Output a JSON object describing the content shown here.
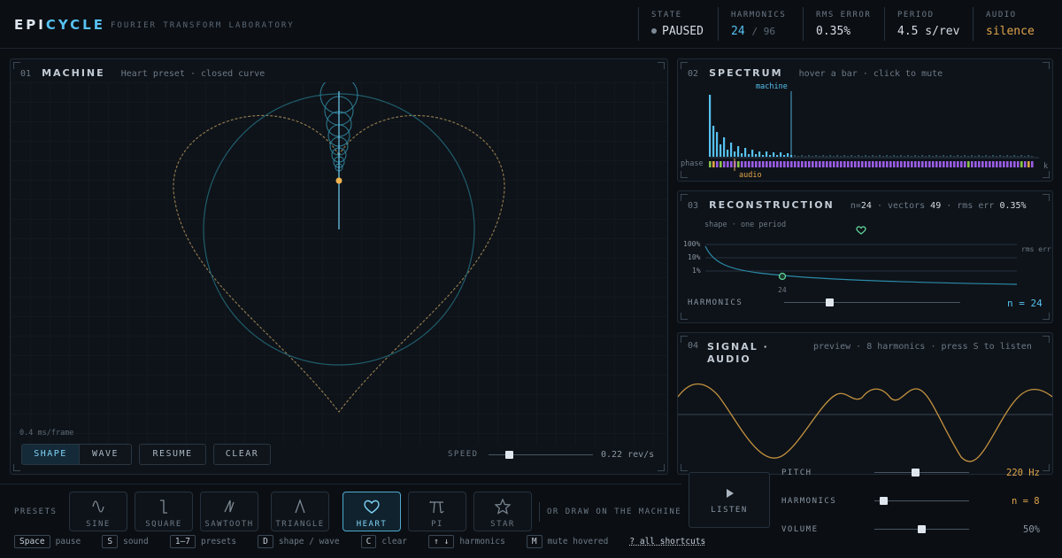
{
  "header": {
    "logo_part1": "EPI",
    "logo_part2": "CYCLE",
    "subtitle": "FOURIER TRANSFORM LABORATORY",
    "stats": {
      "state": {
        "label": "STATE",
        "value": "PAUSED"
      },
      "harmonics": {
        "label": "HARMONICS",
        "value": "24",
        "suffix": "/ 96"
      },
      "rms": {
        "label": "RMS ERROR",
        "value": "0.35%"
      },
      "period": {
        "label": "PERIOD",
        "value": "4.5 s/rev"
      },
      "audio": {
        "label": "AUDIO",
        "value": "silence"
      }
    }
  },
  "machine": {
    "num": "01",
    "title": "MACHINE",
    "subtitle": "Heart preset · closed curve",
    "frame_time": "0.4 ms/frame",
    "mode_shape": "SHAPE",
    "mode_wave": "WAVE",
    "resume": "RESUME",
    "clear": "CLEAR",
    "speed_label": "SPEED",
    "speed_value": "0.22 rev/s",
    "speed_fraction": 0.2
  },
  "spectrum": {
    "num": "02",
    "title": "SPECTRUM",
    "subtitle": "hover a bar · click to mute",
    "machine_label": "machine",
    "phase_label": "phase",
    "audio_label": "audio",
    "scale_label": "k"
  },
  "reconstruction": {
    "num": "03",
    "title": "RECONSTRUCTION",
    "n_prefix": "n=",
    "n_value": "24",
    "vectors_prefix": "· vectors",
    "vectors_value": "49",
    "rms_prefix": "· rms err",
    "rms_value": "0.35%",
    "shape_caption": "shape · one period",
    "error_axis_ticks": [
      "100%",
      "10%",
      "1%"
    ],
    "error_label": "rms err",
    "marker_label": "24",
    "harmonics_label": "HARMONICS",
    "harmonics_value": "n = 24",
    "harmonics_fraction": 0.26
  },
  "signal": {
    "num": "04",
    "title": "SIGNAL · AUDIO",
    "subtitle": "preview · 8 harmonics · press S to listen",
    "listen": "LISTEN",
    "pitch_label": "PITCH",
    "pitch_value": "220 Hz",
    "pitch_fraction": 0.43,
    "harmonics_label": "HARMONICS",
    "harmonics_value": "n = 8",
    "harmonics_fraction": 0.1,
    "volume_label": "VOLUME",
    "volume_value": "50%",
    "volume_fraction": 0.5
  },
  "presets": {
    "label": "PRESETS",
    "items": [
      {
        "name": "SINE",
        "icon": "sine-icon"
      },
      {
        "name": "SQUARE",
        "icon": "square-wave-icon"
      },
      {
        "name": "SAWTOOTH",
        "icon": "sawtooth-icon"
      },
      {
        "name": "TRIANGLE",
        "icon": "triangle-icon"
      },
      {
        "name": "HEART",
        "icon": "heart-icon",
        "active": true
      },
      {
        "name": "PI",
        "icon": "pi-icon"
      },
      {
        "name": "STAR",
        "icon": "star-icon"
      }
    ],
    "draw_hint": "OR DRAW ON THE MACHINE"
  },
  "shortcuts": [
    {
      "key": "Space",
      "label": "pause"
    },
    {
      "key": "S",
      "label": "sound"
    },
    {
      "key": "1–7",
      "label": "presets"
    },
    {
      "key": "D",
      "label": "shape / wave"
    },
    {
      "key": "C",
      "label": "clear"
    },
    {
      "key": "↑ ↓",
      "label": "harmonics"
    },
    {
      "key": "M",
      "label": "mute hovered"
    }
  ],
  "all_shortcuts": "? all shortcuts",
  "colors": {
    "accent": "#56c1f0",
    "audio": "#e0a44a",
    "phase": "#9b5de5",
    "ok": "#5fd49a"
  }
}
